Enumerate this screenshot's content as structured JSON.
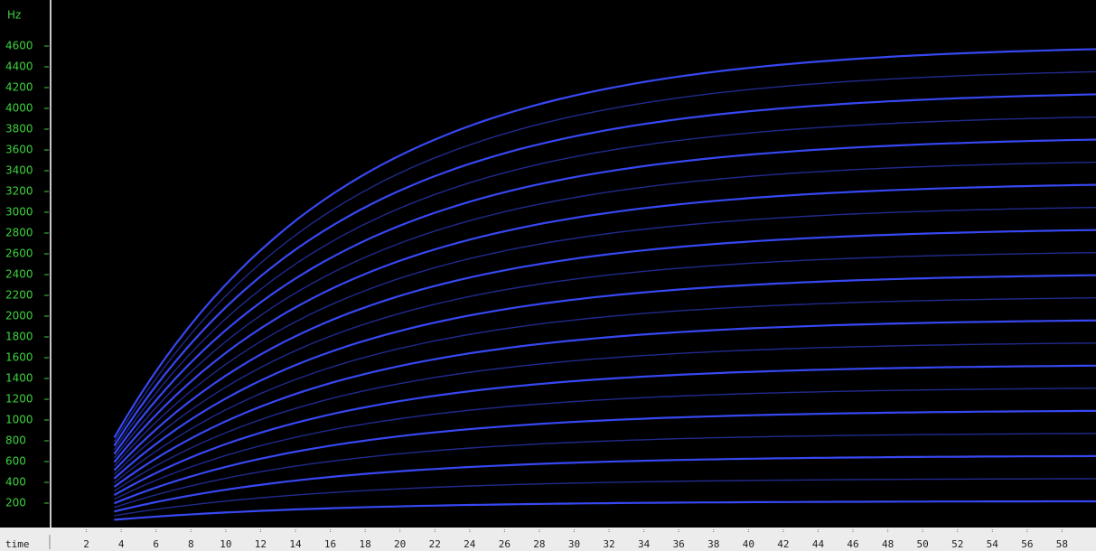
{
  "chart_data": {
    "type": "spectrogram",
    "y_label": "Hz",
    "x_label": "time",
    "xlim": [
      0,
      60
    ],
    "ylim": [
      0,
      5000
    ],
    "xticks": [
      2,
      4,
      6,
      8,
      10,
      12,
      14,
      16,
      18,
      20,
      22,
      24,
      26,
      28,
      30,
      32,
      34,
      36,
      38,
      40,
      42,
      44,
      46,
      48,
      50,
      52,
      54,
      56,
      58
    ],
    "yticks": [
      200,
      400,
      600,
      800,
      1000,
      1200,
      1400,
      1600,
      1800,
      2000,
      2200,
      2400,
      2600,
      2800,
      3000,
      3200,
      3400,
      3600,
      3800,
      4000,
      4200,
      4400,
      4600
    ],
    "series": [
      {
        "color": "#3a4cff",
        "values": [
          220,
          440,
          660,
          880,
          1100,
          1320,
          1540,
          1760,
          1980,
          2200,
          2420,
          2640,
          2860,
          3080,
          3300,
          3520,
          3740,
          3960,
          4180,
          4400,
          4620
        ]
      }
    ]
  }
}
